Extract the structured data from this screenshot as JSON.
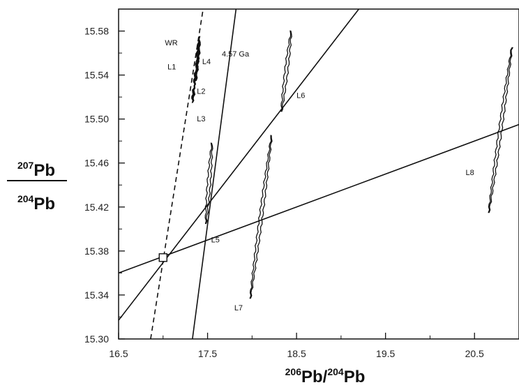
{
  "chart_data": {
    "type": "scatter",
    "title": "",
    "xlabel": {
      "sup1": "206",
      "base1": "Pb/",
      "sup2": "204",
      "base2": "Pb"
    },
    "ylabel": {
      "num_sup": "207",
      "num_base": "Pb",
      "den_sup": "204",
      "den_base": "Pb"
    },
    "xlim": [
      16.5,
      21.0
    ],
    "ylim": [
      15.3,
      15.6
    ],
    "x_ticks": [
      "16.5",
      "17.5",
      "18.5",
      "19.5",
      "20.5"
    ],
    "y_ticks": [
      "15.30",
      "15.34",
      "15.38",
      "15.42",
      "15.46",
      "15.50",
      "15.54",
      "15.58"
    ],
    "series": [
      {
        "name": "WR",
        "points": [
          [
            17.38,
            15.545
          ],
          [
            17.4,
            15.57
          ]
        ]
      },
      {
        "name": "L1",
        "points": [
          [
            17.37,
            15.535
          ],
          [
            17.39,
            15.56
          ]
        ]
      },
      {
        "name": "L4",
        "points": [
          [
            17.39,
            15.55
          ],
          [
            17.41,
            15.575
          ]
        ]
      },
      {
        "name": "L2",
        "points": [
          [
            17.35,
            15.53
          ],
          [
            17.37,
            15.545
          ]
        ]
      },
      {
        "name": "L3",
        "points": [
          [
            17.33,
            15.515
          ],
          [
            17.35,
            15.53
          ]
        ]
      },
      {
        "name": "L5",
        "points": [
          [
            17.48,
            15.405
          ],
          [
            17.55,
            15.478
          ]
        ]
      },
      {
        "name": "L6",
        "points": [
          [
            18.33,
            15.507
          ],
          [
            18.44,
            15.58
          ]
        ]
      },
      {
        "name": "L7",
        "points": [
          [
            17.98,
            15.337
          ],
          [
            18.22,
            15.485
          ]
        ]
      },
      {
        "name": "L8",
        "points": [
          [
            20.66,
            15.415
          ],
          [
            20.92,
            15.565
          ]
        ]
      }
    ],
    "reference_lines": [
      {
        "x1": 16.86,
        "y1": 15.3,
        "x2": 17.45,
        "y2": 15.6,
        "style": "dashed"
      },
      {
        "x1": 17.33,
        "y1": 15.3,
        "x2": 17.82,
        "y2": 15.6,
        "style": "solid",
        "label": "4.57 Ga"
      },
      {
        "x1": 16.5,
        "y1": 15.317,
        "x2": 19.2,
        "y2": 15.6,
        "style": "solid"
      },
      {
        "x1": 16.5,
        "y1": 15.36,
        "x2": 21.0,
        "y2": 15.495,
        "style": "solid"
      }
    ],
    "marker": {
      "x": 17.0,
      "y": 15.374,
      "shape": "open-square"
    },
    "annotations": [
      {
        "text": "WR",
        "x": 17.02,
        "y": 15.567
      },
      {
        "text": "L1",
        "x": 17.05,
        "y": 15.545
      },
      {
        "text": "L4",
        "x": 17.44,
        "y": 15.55
      },
      {
        "text": "L2",
        "x": 17.38,
        "y": 15.523
      },
      {
        "text": "L3",
        "x": 17.38,
        "y": 15.498
      },
      {
        "text": "4.57 Ga",
        "x": 17.66,
        "y": 15.557
      },
      {
        "text": "L6",
        "x": 18.5,
        "y": 15.519
      },
      {
        "text": "L5",
        "x": 17.54,
        "y": 15.388
      },
      {
        "text": "L7",
        "x": 17.8,
        "y": 15.326
      },
      {
        "text": "L8",
        "x": 20.4,
        "y": 15.449
      }
    ],
    "grid": false,
    "legend": "none"
  }
}
